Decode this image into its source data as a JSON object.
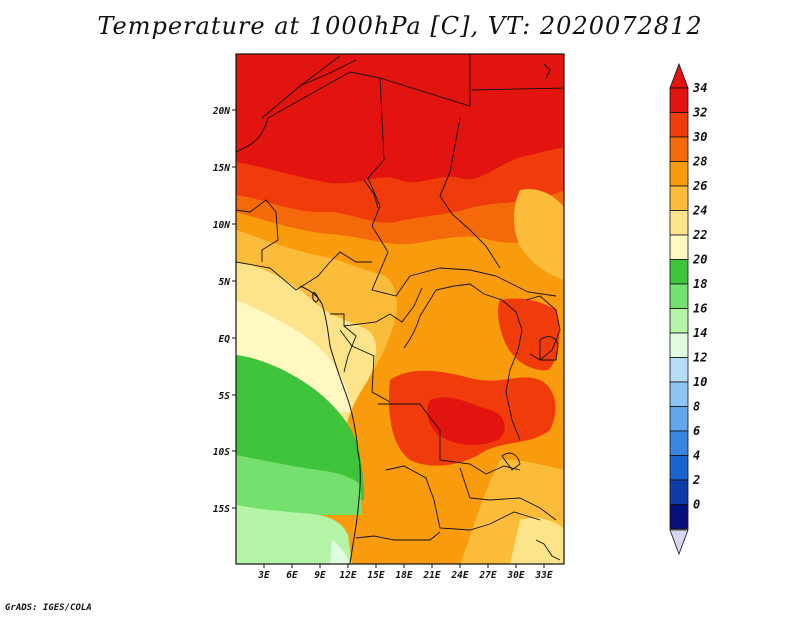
{
  "title": "Temperature at 1000hPa [C], VT: 2020072812",
  "credit": "GrADS: IGES/COLA",
  "map": {
    "lat_labels": [
      "20N",
      "15N",
      "10N",
      "5N",
      "EQ",
      "5S",
      "10S",
      "15S"
    ],
    "lon_labels": [
      "3E",
      "6E",
      "9E",
      "12E",
      "15E",
      "18E",
      "21E",
      "24E",
      "27E",
      "30E",
      "33E"
    ]
  },
  "colorbar": {
    "levels": [
      "34",
      "32",
      "30",
      "28",
      "26",
      "24",
      "22",
      "20",
      "18",
      "16",
      "14",
      "12",
      "10",
      "8",
      "6",
      "4",
      "2",
      "0"
    ],
    "colors": [
      "#e3130f",
      "#f03c0b",
      "#f46a0a",
      "#f89b0c",
      "#fbbc3a",
      "#fde48a",
      "#fff8c0",
      "#3ec43a",
      "#76e06e",
      "#b6f4a8",
      "#e0fbe0",
      "#b4ddf7",
      "#8cc4f2",
      "#5fa6ea",
      "#3886e0",
      "#1b62d2",
      "#0d3ba7",
      "#05107a"
    ],
    "top_color": "#e3130f",
    "bottom_color": "#d8d4f6"
  }
}
